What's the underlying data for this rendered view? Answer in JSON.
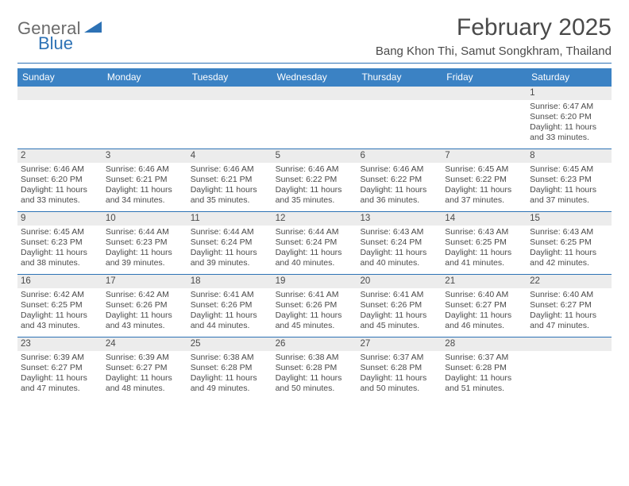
{
  "logo": {
    "general": "General",
    "blue": "Blue"
  },
  "title": "February 2025",
  "location": "Bang Khon Thi, Samut Songkhram, Thailand",
  "colors": {
    "header_bg": "#3b82c4",
    "rule": "#2d72b5",
    "day_strip_bg": "#ececec",
    "text": "#4a4a4a",
    "logo_blue": "#2d72b5",
    "logo_gray": "#6b6b6b"
  },
  "typography": {
    "title_fontsize": 30,
    "location_fontsize": 15,
    "dow_fontsize": 12,
    "daynum_fontsize": 11.5,
    "body_fontsize": 10.5
  },
  "days_of_week": [
    "Sunday",
    "Monday",
    "Tuesday",
    "Wednesday",
    "Thursday",
    "Friday",
    "Saturday"
  ],
  "weeks": [
    [
      {
        "n": "",
        "sr": "",
        "ss": "",
        "dl": ""
      },
      {
        "n": "",
        "sr": "",
        "ss": "",
        "dl": ""
      },
      {
        "n": "",
        "sr": "",
        "ss": "",
        "dl": ""
      },
      {
        "n": "",
        "sr": "",
        "ss": "",
        "dl": ""
      },
      {
        "n": "",
        "sr": "",
        "ss": "",
        "dl": ""
      },
      {
        "n": "",
        "sr": "",
        "ss": "",
        "dl": ""
      },
      {
        "n": "1",
        "sr": "Sunrise: 6:47 AM",
        "ss": "Sunset: 6:20 PM",
        "dl": "Daylight: 11 hours and 33 minutes."
      }
    ],
    [
      {
        "n": "2",
        "sr": "Sunrise: 6:46 AM",
        "ss": "Sunset: 6:20 PM",
        "dl": "Daylight: 11 hours and 33 minutes."
      },
      {
        "n": "3",
        "sr": "Sunrise: 6:46 AM",
        "ss": "Sunset: 6:21 PM",
        "dl": "Daylight: 11 hours and 34 minutes."
      },
      {
        "n": "4",
        "sr": "Sunrise: 6:46 AM",
        "ss": "Sunset: 6:21 PM",
        "dl": "Daylight: 11 hours and 35 minutes."
      },
      {
        "n": "5",
        "sr": "Sunrise: 6:46 AM",
        "ss": "Sunset: 6:22 PM",
        "dl": "Daylight: 11 hours and 35 minutes."
      },
      {
        "n": "6",
        "sr": "Sunrise: 6:46 AM",
        "ss": "Sunset: 6:22 PM",
        "dl": "Daylight: 11 hours and 36 minutes."
      },
      {
        "n": "7",
        "sr": "Sunrise: 6:45 AM",
        "ss": "Sunset: 6:22 PM",
        "dl": "Daylight: 11 hours and 37 minutes."
      },
      {
        "n": "8",
        "sr": "Sunrise: 6:45 AM",
        "ss": "Sunset: 6:23 PM",
        "dl": "Daylight: 11 hours and 37 minutes."
      }
    ],
    [
      {
        "n": "9",
        "sr": "Sunrise: 6:45 AM",
        "ss": "Sunset: 6:23 PM",
        "dl": "Daylight: 11 hours and 38 minutes."
      },
      {
        "n": "10",
        "sr": "Sunrise: 6:44 AM",
        "ss": "Sunset: 6:23 PM",
        "dl": "Daylight: 11 hours and 39 minutes."
      },
      {
        "n": "11",
        "sr": "Sunrise: 6:44 AM",
        "ss": "Sunset: 6:24 PM",
        "dl": "Daylight: 11 hours and 39 minutes."
      },
      {
        "n": "12",
        "sr": "Sunrise: 6:44 AM",
        "ss": "Sunset: 6:24 PM",
        "dl": "Daylight: 11 hours and 40 minutes."
      },
      {
        "n": "13",
        "sr": "Sunrise: 6:43 AM",
        "ss": "Sunset: 6:24 PM",
        "dl": "Daylight: 11 hours and 40 minutes."
      },
      {
        "n": "14",
        "sr": "Sunrise: 6:43 AM",
        "ss": "Sunset: 6:25 PM",
        "dl": "Daylight: 11 hours and 41 minutes."
      },
      {
        "n": "15",
        "sr": "Sunrise: 6:43 AM",
        "ss": "Sunset: 6:25 PM",
        "dl": "Daylight: 11 hours and 42 minutes."
      }
    ],
    [
      {
        "n": "16",
        "sr": "Sunrise: 6:42 AM",
        "ss": "Sunset: 6:25 PM",
        "dl": "Daylight: 11 hours and 43 minutes."
      },
      {
        "n": "17",
        "sr": "Sunrise: 6:42 AM",
        "ss": "Sunset: 6:26 PM",
        "dl": "Daylight: 11 hours and 43 minutes."
      },
      {
        "n": "18",
        "sr": "Sunrise: 6:41 AM",
        "ss": "Sunset: 6:26 PM",
        "dl": "Daylight: 11 hours and 44 minutes."
      },
      {
        "n": "19",
        "sr": "Sunrise: 6:41 AM",
        "ss": "Sunset: 6:26 PM",
        "dl": "Daylight: 11 hours and 45 minutes."
      },
      {
        "n": "20",
        "sr": "Sunrise: 6:41 AM",
        "ss": "Sunset: 6:26 PM",
        "dl": "Daylight: 11 hours and 45 minutes."
      },
      {
        "n": "21",
        "sr": "Sunrise: 6:40 AM",
        "ss": "Sunset: 6:27 PM",
        "dl": "Daylight: 11 hours and 46 minutes."
      },
      {
        "n": "22",
        "sr": "Sunrise: 6:40 AM",
        "ss": "Sunset: 6:27 PM",
        "dl": "Daylight: 11 hours and 47 minutes."
      }
    ],
    [
      {
        "n": "23",
        "sr": "Sunrise: 6:39 AM",
        "ss": "Sunset: 6:27 PM",
        "dl": "Daylight: 11 hours and 47 minutes."
      },
      {
        "n": "24",
        "sr": "Sunrise: 6:39 AM",
        "ss": "Sunset: 6:27 PM",
        "dl": "Daylight: 11 hours and 48 minutes."
      },
      {
        "n": "25",
        "sr": "Sunrise: 6:38 AM",
        "ss": "Sunset: 6:28 PM",
        "dl": "Daylight: 11 hours and 49 minutes."
      },
      {
        "n": "26",
        "sr": "Sunrise: 6:38 AM",
        "ss": "Sunset: 6:28 PM",
        "dl": "Daylight: 11 hours and 50 minutes."
      },
      {
        "n": "27",
        "sr": "Sunrise: 6:37 AM",
        "ss": "Sunset: 6:28 PM",
        "dl": "Daylight: 11 hours and 50 minutes."
      },
      {
        "n": "28",
        "sr": "Sunrise: 6:37 AM",
        "ss": "Sunset: 6:28 PM",
        "dl": "Daylight: 11 hours and 51 minutes."
      },
      {
        "n": "",
        "sr": "",
        "ss": "",
        "dl": ""
      }
    ]
  ]
}
